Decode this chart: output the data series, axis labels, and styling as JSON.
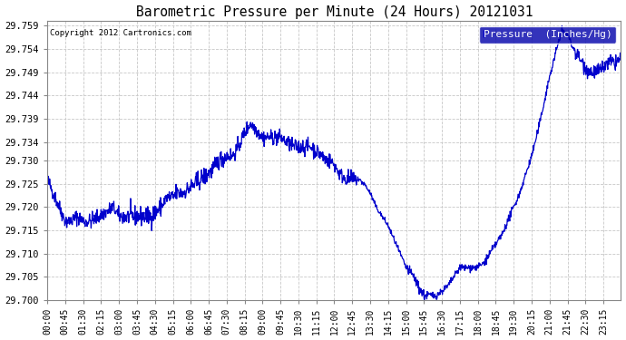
{
  "title": "Barometric Pressure per Minute (24 Hours) 20121031",
  "copyright": "Copyright 2012 Cartronics.com",
  "legend_label": "Pressure  (Inches/Hg)",
  "line_color": "#0000cc",
  "background_color": "#ffffff",
  "grid_color": "#c8c8c8",
  "ylim": [
    29.7,
    29.76
  ],
  "yticks": [
    29.7,
    29.705,
    29.71,
    29.715,
    29.72,
    29.725,
    29.73,
    29.734,
    29.739,
    29.744,
    29.749,
    29.754,
    29.759
  ],
  "xtick_labels": [
    "00:00",
    "00:45",
    "01:30",
    "02:15",
    "03:00",
    "03:45",
    "04:30",
    "05:15",
    "06:00",
    "06:45",
    "07:30",
    "08:15",
    "09:00",
    "09:45",
    "10:30",
    "11:15",
    "12:00",
    "12:45",
    "13:30",
    "14:15",
    "15:00",
    "15:45",
    "16:30",
    "17:15",
    "18:00",
    "18:45",
    "19:30",
    "20:15",
    "21:00",
    "21:45",
    "22:30",
    "23:15"
  ],
  "waypoints_t": [
    0,
    20,
    45,
    60,
    75,
    90,
    110,
    130,
    150,
    165,
    180,
    200,
    220,
    240,
    260,
    285,
    300,
    315,
    325,
    340,
    355,
    370,
    385,
    400,
    415,
    430,
    450,
    465,
    480,
    495,
    510,
    520,
    530,
    540,
    555,
    570,
    585,
    600,
    615,
    630,
    645,
    660,
    675,
    690,
    700,
    710,
    720,
    735,
    750,
    760,
    770,
    780,
    795,
    810,
    825,
    840,
    855,
    870,
    885,
    900,
    910,
    920,
    930,
    945,
    960,
    975,
    990,
    1005,
    1020,
    1035,
    1050,
    1065,
    1080,
    1095,
    1110,
    1125,
    1140,
    1155,
    1170,
    1185,
    1200,
    1215,
    1230,
    1245,
    1260,
    1275,
    1290,
    1305,
    1320,
    1335,
    1350,
    1365,
    1380,
    1395,
    1410,
    1425,
    1439
  ],
  "waypoints_p": [
    29.726,
    29.722,
    29.717,
    29.717,
    29.718,
    29.717,
    29.717,
    29.718,
    29.719,
    29.72,
    29.718,
    29.718,
    29.718,
    29.718,
    29.718,
    29.72,
    29.722,
    29.722,
    29.723,
    29.723,
    29.724,
    29.725,
    29.726,
    29.727,
    29.728,
    29.73,
    29.731,
    29.731,
    29.733,
    29.736,
    29.738,
    29.737,
    29.736,
    29.735,
    29.735,
    29.735,
    29.735,
    29.734,
    29.733,
    29.733,
    29.733,
    29.733,
    29.732,
    29.731,
    29.73,
    29.73,
    29.729,
    29.727,
    29.726,
    29.726,
    29.726,
    29.726,
    29.725,
    29.723,
    29.72,
    29.718,
    29.716,
    29.713,
    29.71,
    29.707,
    29.706,
    29.705,
    29.703,
    29.701,
    29.701,
    29.701,
    29.702,
    29.703,
    29.705,
    29.707,
    29.707,
    29.707,
    29.707,
    29.708,
    29.71,
    29.712,
    29.714,
    29.717,
    29.72,
    29.723,
    29.727,
    29.731,
    29.736,
    29.742,
    29.748,
    29.753,
    29.758,
    29.757,
    29.754,
    29.752,
    29.75,
    29.749,
    29.749,
    29.75,
    29.751,
    29.751,
    29.752
  ]
}
